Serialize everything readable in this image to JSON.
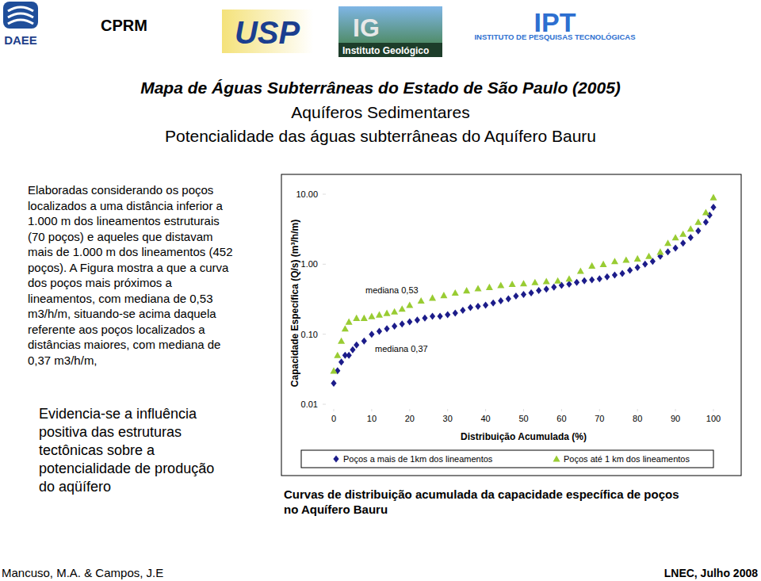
{
  "header": {
    "daee": "DAEE",
    "cprm": "CPRM",
    "usp": "USP",
    "ig": "IG",
    "ig_name": "Instituto Geológico",
    "ipt": "IPT",
    "ipt_name": "INSTITUTO DE PESQUISAS TECNOLÓGICAS"
  },
  "title": [
    "Mapa de Águas Subterrâneas do Estado de São Paulo (2005)",
    "Aquíferos Sedimentares",
    "Potencialidade das águas subterrâneas do Aquífero Bauru"
  ],
  "left_text": [
    "Elaboradas considerando os poços",
    "localizados a uma distância inferior a",
    "1.000 m dos lineamentos estruturais",
    "(70 poços) e aqueles que distavam",
    "mais de 1.000 m dos lineamentos (452",
    "poços). A Figura mostra a que a curva",
    "dos poços mais próximos a",
    "lineamentos, com mediana de 0,53",
    "m3/h/m, situando-se acima daquela",
    "referente aos poços localizados a",
    "distâncias maiores, com mediana de",
    "0,37 m3/h/m,"
  ],
  "conclusion": [
    "Evidencia-se a influência",
    "positiva das estruturas",
    "tectônicas sobre a",
    "potencialidade de produção",
    "do aqüífero"
  ],
  "caption": [
    "Curvas de distribuição acumulada da capacidade específica de poços",
    "no Aquífero Bauru"
  ],
  "footer": {
    "authors": "Mancuso, M.A. & Campos, J.E",
    "event": "LNEC, Julho 2008"
  },
  "chart_data": {
    "type": "scatter",
    "x_label": "Distribuição Acumulada (%)",
    "y_label": "Capacidade Específica (Q/s) (m³/h/m)",
    "log": "y",
    "grid": false,
    "legend": "bottom",
    "xlim": [
      0,
      100
    ],
    "xticks": [
      0,
      10,
      20,
      30,
      40,
      50,
      60,
      70,
      80,
      90,
      100
    ],
    "ylim": [
      0.01,
      10
    ],
    "yticks": [
      {
        "value": 0.01,
        "label": "0.01"
      },
      {
        "value": 0.1,
        "label": "0.10"
      },
      {
        "value": 1,
        "label": "1.00"
      },
      {
        "value": 10,
        "label": "10.00"
      }
    ],
    "annotations": [
      {
        "text": "mediana 0,53"
      },
      {
        "text": "mediana 0,37"
      }
    ],
    "series": [
      {
        "name": "Poços a mais de 1km dos lineamentos",
        "color": "#1c1c8a",
        "marker": "diamond",
        "x": [
          0,
          1,
          2,
          3,
          4,
          5,
          6,
          8,
          10,
          12,
          14,
          16,
          18,
          20,
          22,
          24,
          26,
          28,
          30,
          32,
          34,
          36,
          38,
          40,
          42,
          44,
          46,
          48,
          50,
          52,
          54,
          56,
          58,
          60,
          62,
          64,
          66,
          68,
          70,
          72,
          74,
          76,
          78,
          80,
          82,
          84,
          86,
          88,
          90,
          92,
          94,
          96,
          98,
          99,
          100
        ],
        "values": [
          0.02,
          0.03,
          0.04,
          0.05,
          0.05,
          0.06,
          0.07,
          0.08,
          0.1,
          0.11,
          0.12,
          0.13,
          0.14,
          0.15,
          0.16,
          0.17,
          0.18,
          0.18,
          0.19,
          0.2,
          0.22,
          0.24,
          0.25,
          0.26,
          0.28,
          0.3,
          0.32,
          0.35,
          0.37,
          0.39,
          0.42,
          0.44,
          0.47,
          0.5,
          0.52,
          0.55,
          0.58,
          0.6,
          0.62,
          0.66,
          0.7,
          0.74,
          0.82,
          0.9,
          1.0,
          1.1,
          1.3,
          1.5,
          1.7,
          2.0,
          2.4,
          3.0,
          4.0,
          5.0,
          6.5
        ]
      },
      {
        "name": "Poços até 1 km dos lineamentos",
        "color": "#99cc33",
        "marker": "triangle",
        "x": [
          0,
          1,
          2,
          3,
          4,
          6,
          8,
          10,
          12,
          14,
          16,
          18,
          20,
          23,
          26,
          29,
          32,
          35,
          38,
          41,
          44,
          47,
          50,
          53,
          56,
          59,
          62,
          65,
          68,
          71,
          74,
          77,
          80,
          83,
          86,
          88,
          90,
          92,
          94,
          96,
          98,
          100
        ],
        "values": [
          0.03,
          0.05,
          0.08,
          0.12,
          0.15,
          0.17,
          0.17,
          0.18,
          0.19,
          0.2,
          0.21,
          0.23,
          0.26,
          0.3,
          0.33,
          0.36,
          0.39,
          0.42,
          0.45,
          0.47,
          0.5,
          0.52,
          0.53,
          0.55,
          0.57,
          0.58,
          0.62,
          0.8,
          0.95,
          1.0,
          1.1,
          1.15,
          1.2,
          1.3,
          1.5,
          2.0,
          2.4,
          2.7,
          3.2,
          4.0,
          5.5,
          9.0
        ]
      }
    ]
  }
}
